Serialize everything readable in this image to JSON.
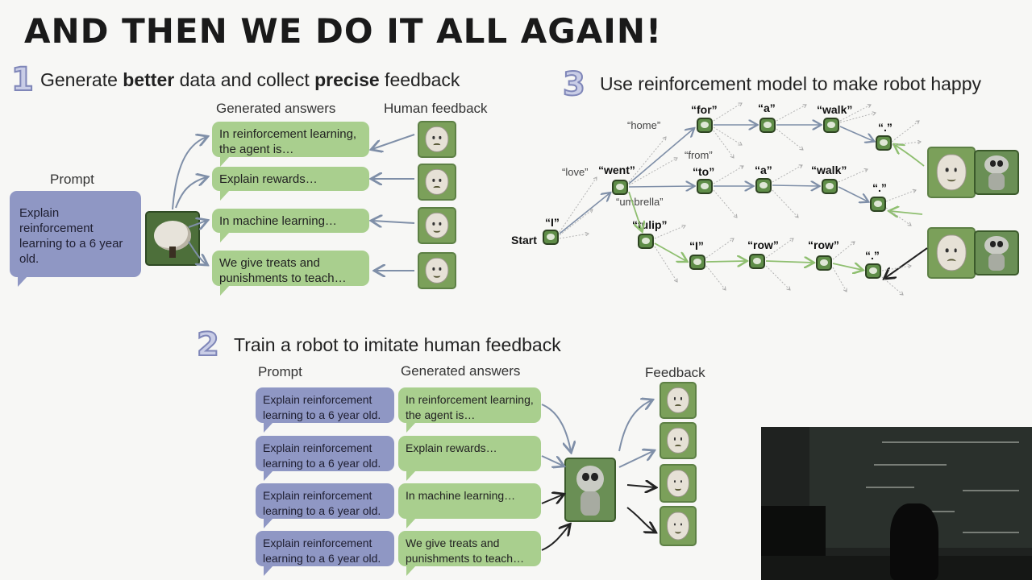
{
  "title": "AND THEN WE DO IT ALL AGAIN!",
  "section1": {
    "number": "1",
    "heading_pre": "Generate ",
    "heading_b1": "better",
    "heading_mid": " data and collect ",
    "heading_b2": "precise",
    "heading_post": " feedback",
    "prompt_label": "Prompt",
    "prompt_text": "Explain reinforcement learning to a 6 year old.",
    "answers_label": "Generated answers",
    "feedback_label": "Human feedback",
    "answers": [
      "In reinforcement learning, the agent is…",
      "Explain rewards…",
      "In machine learning…",
      "We give treats and punishments to teach…"
    ]
  },
  "section2": {
    "number": "2",
    "heading": "Train a robot to imitate human feedback",
    "prompt_label": "Prompt",
    "answers_label": "Generated answers",
    "feedback_label": "Feedback",
    "prompts": [
      "Explain reinforcement learning to a 6 year old.",
      "Explain reinforcement learning to a 6 year old.",
      "Explain reinforcement learning to a 6 year old.",
      "Explain reinforcement learning to a 6 year old."
    ],
    "answers": [
      "In reinforcement learning, the agent is…",
      "Explain rewards…",
      "In machine learning…",
      "We give treats and punishments to teach…"
    ]
  },
  "section3": {
    "number": "3",
    "heading": "Use reinforcement model to make robot happy",
    "start": "Start",
    "tokens_bold": [
      "“I”",
      "“went”",
      "“for”",
      "“a”",
      "“walk”",
      "“.”",
      "“to”",
      "“a”",
      "“walk”",
      "“.”",
      "“tulip”",
      "“I”",
      "“row”",
      "“row”",
      "“.”"
    ],
    "tokens_light": [
      "“home”",
      "“love”",
      "“from”",
      "“umbrella”"
    ]
  },
  "colors": {
    "answer_bubble": "#a9cf8e",
    "prompt_bubble": "#8f97c4",
    "arrow": "#7f8fa8"
  }
}
